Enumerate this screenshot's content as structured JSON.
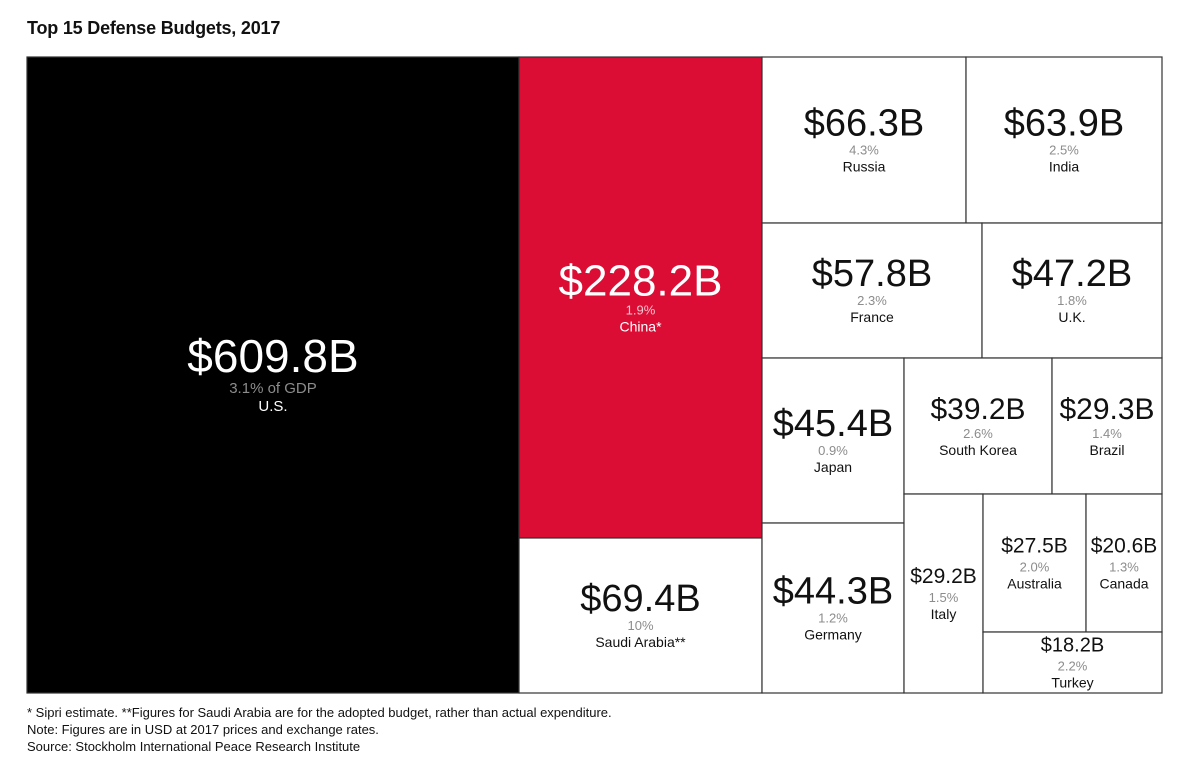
{
  "chart_data": {
    "type": "treemap",
    "title": "Top 15 Defense Budgets, 2017",
    "colors": {
      "us": "#000000",
      "china": "#dc0d35",
      "other": "#ffffff",
      "border": "#333333",
      "muted": "#8c8c8c"
    },
    "items": [
      {
        "country": "U.S.",
        "value": 609.8,
        "label": "$609.8B",
        "gdp": "3.1% of GDP",
        "fill": "us"
      },
      {
        "country": "China*",
        "value": 228.2,
        "label": "$228.2B",
        "gdp": "1.9%",
        "fill": "china"
      },
      {
        "country": "Saudi Arabia**",
        "value": 69.4,
        "label": "$69.4B",
        "gdp": "10%",
        "fill": "other"
      },
      {
        "country": "Russia",
        "value": 66.3,
        "label": "$66.3B",
        "gdp": "4.3%",
        "fill": "other"
      },
      {
        "country": "India",
        "value": 63.9,
        "label": "$63.9B",
        "gdp": "2.5%",
        "fill": "other"
      },
      {
        "country": "France",
        "value": 57.8,
        "label": "$57.8B",
        "gdp": "2.3%",
        "fill": "other"
      },
      {
        "country": "U.K.",
        "value": 47.2,
        "label": "$47.2B",
        "gdp": "1.8%",
        "fill": "other"
      },
      {
        "country": "Japan",
        "value": 45.4,
        "label": "$45.4B",
        "gdp": "0.9%",
        "fill": "other"
      },
      {
        "country": "Germany",
        "value": 44.3,
        "label": "$44.3B",
        "gdp": "1.2%",
        "fill": "other"
      },
      {
        "country": "South Korea",
        "value": 39.2,
        "label": "$39.2B",
        "gdp": "2.6%",
        "fill": "other"
      },
      {
        "country": "Brazil",
        "value": 29.3,
        "label": "$29.3B",
        "gdp": "1.4%",
        "fill": "other"
      },
      {
        "country": "Italy",
        "value": 29.2,
        "label": "$29.2B",
        "gdp": "1.5%",
        "fill": "other"
      },
      {
        "country": "Australia",
        "value": 27.5,
        "label": "$27.5B",
        "gdp": "2.0%",
        "fill": "other"
      },
      {
        "country": "Canada",
        "value": 20.6,
        "label": "$20.6B",
        "gdp": "1.3%",
        "fill": "other"
      },
      {
        "country": "Turkey",
        "value": 18.2,
        "label": "$18.2B",
        "gdp": "2.2%",
        "fill": "other"
      }
    ]
  },
  "footnotes": {
    "estimate": "* Sipri estimate. **Figures for Saudi Arabia are for the adopted budget, rather than actual expenditure.",
    "note": "Note: Figures are in USD at 2017 prices and exchange rates.",
    "source": "Source: Stockholm International Peace Research Institute"
  }
}
